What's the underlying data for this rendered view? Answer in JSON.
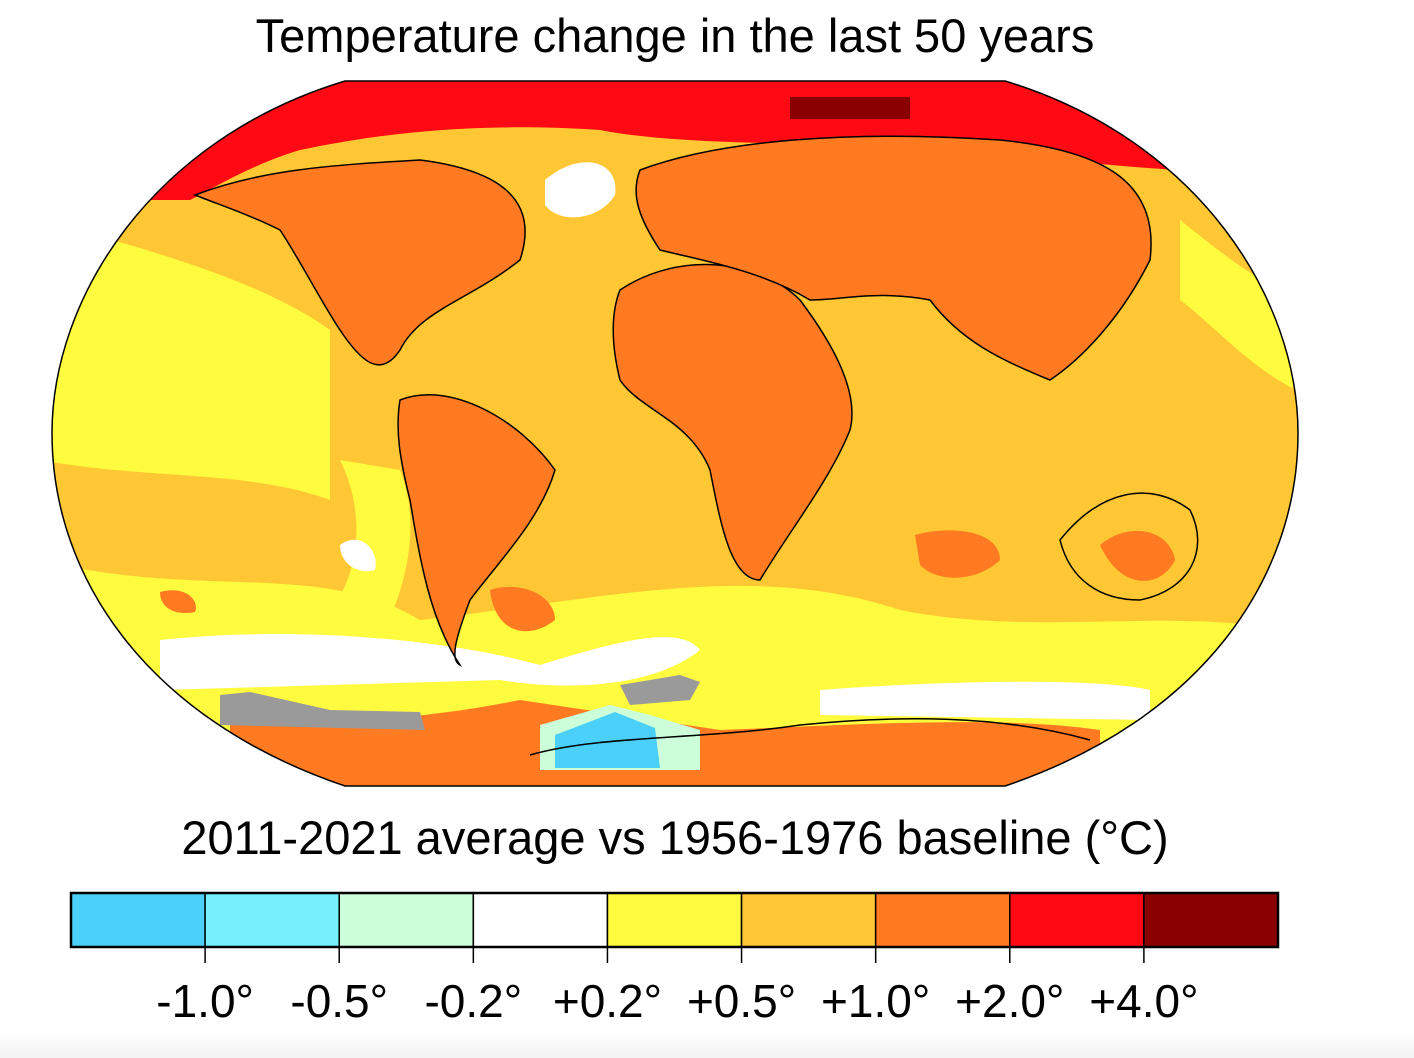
{
  "title": "Temperature change in the last 50 years",
  "subtitle": "2011-2021 average vs 1956-1976 baseline (°C)",
  "legend": {
    "bins": [
      {
        "color": "#4bd1f9"
      },
      {
        "color": "#76f0fd"
      },
      {
        "color": "#ccffd9"
      },
      {
        "color": "#ffffff"
      },
      {
        "color": "#fffb3f"
      },
      {
        "color": "#ffc733"
      },
      {
        "color": "#ff7a20"
      },
      {
        "color": "#ff0a14"
      },
      {
        "color": "#8a0000"
      }
    ],
    "tick_labels": [
      "-1.0°",
      "-0.5°",
      "-0.2°",
      "+0.2°",
      "+0.5°",
      "+1.0°",
      "+2.0°",
      "+4.0°"
    ]
  },
  "no_data_color": "#9a9a9a"
}
